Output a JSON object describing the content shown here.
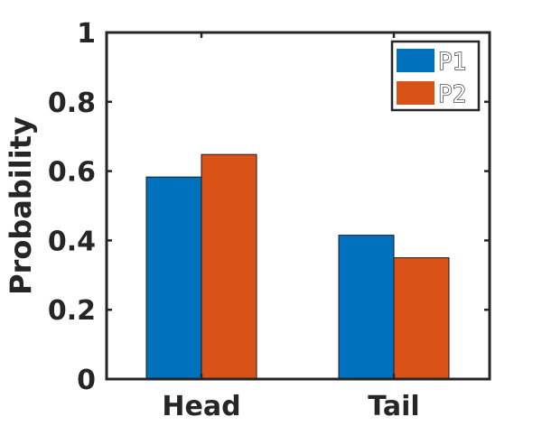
{
  "chart_data": {
    "type": "bar",
    "categories": [
      "Head",
      "Tail"
    ],
    "series": [
      {
        "name": "P1",
        "values": [
          0.583,
          0.415
        ],
        "color": "#0072BD"
      },
      {
        "name": "P2",
        "values": [
          0.648,
          0.35
        ],
        "color": "#D95319"
      }
    ],
    "xlabel": "",
    "ylabel": "Probability",
    "ylim": [
      0,
      1
    ],
    "yticks": [
      0,
      0.2,
      0.4,
      0.6,
      0.8,
      1
    ],
    "ytick_labels": [
      "0",
      "0.2",
      "0.4",
      "0.6",
      "0.8",
      "1"
    ],
    "grid": false,
    "legend_position": "top-right"
  }
}
